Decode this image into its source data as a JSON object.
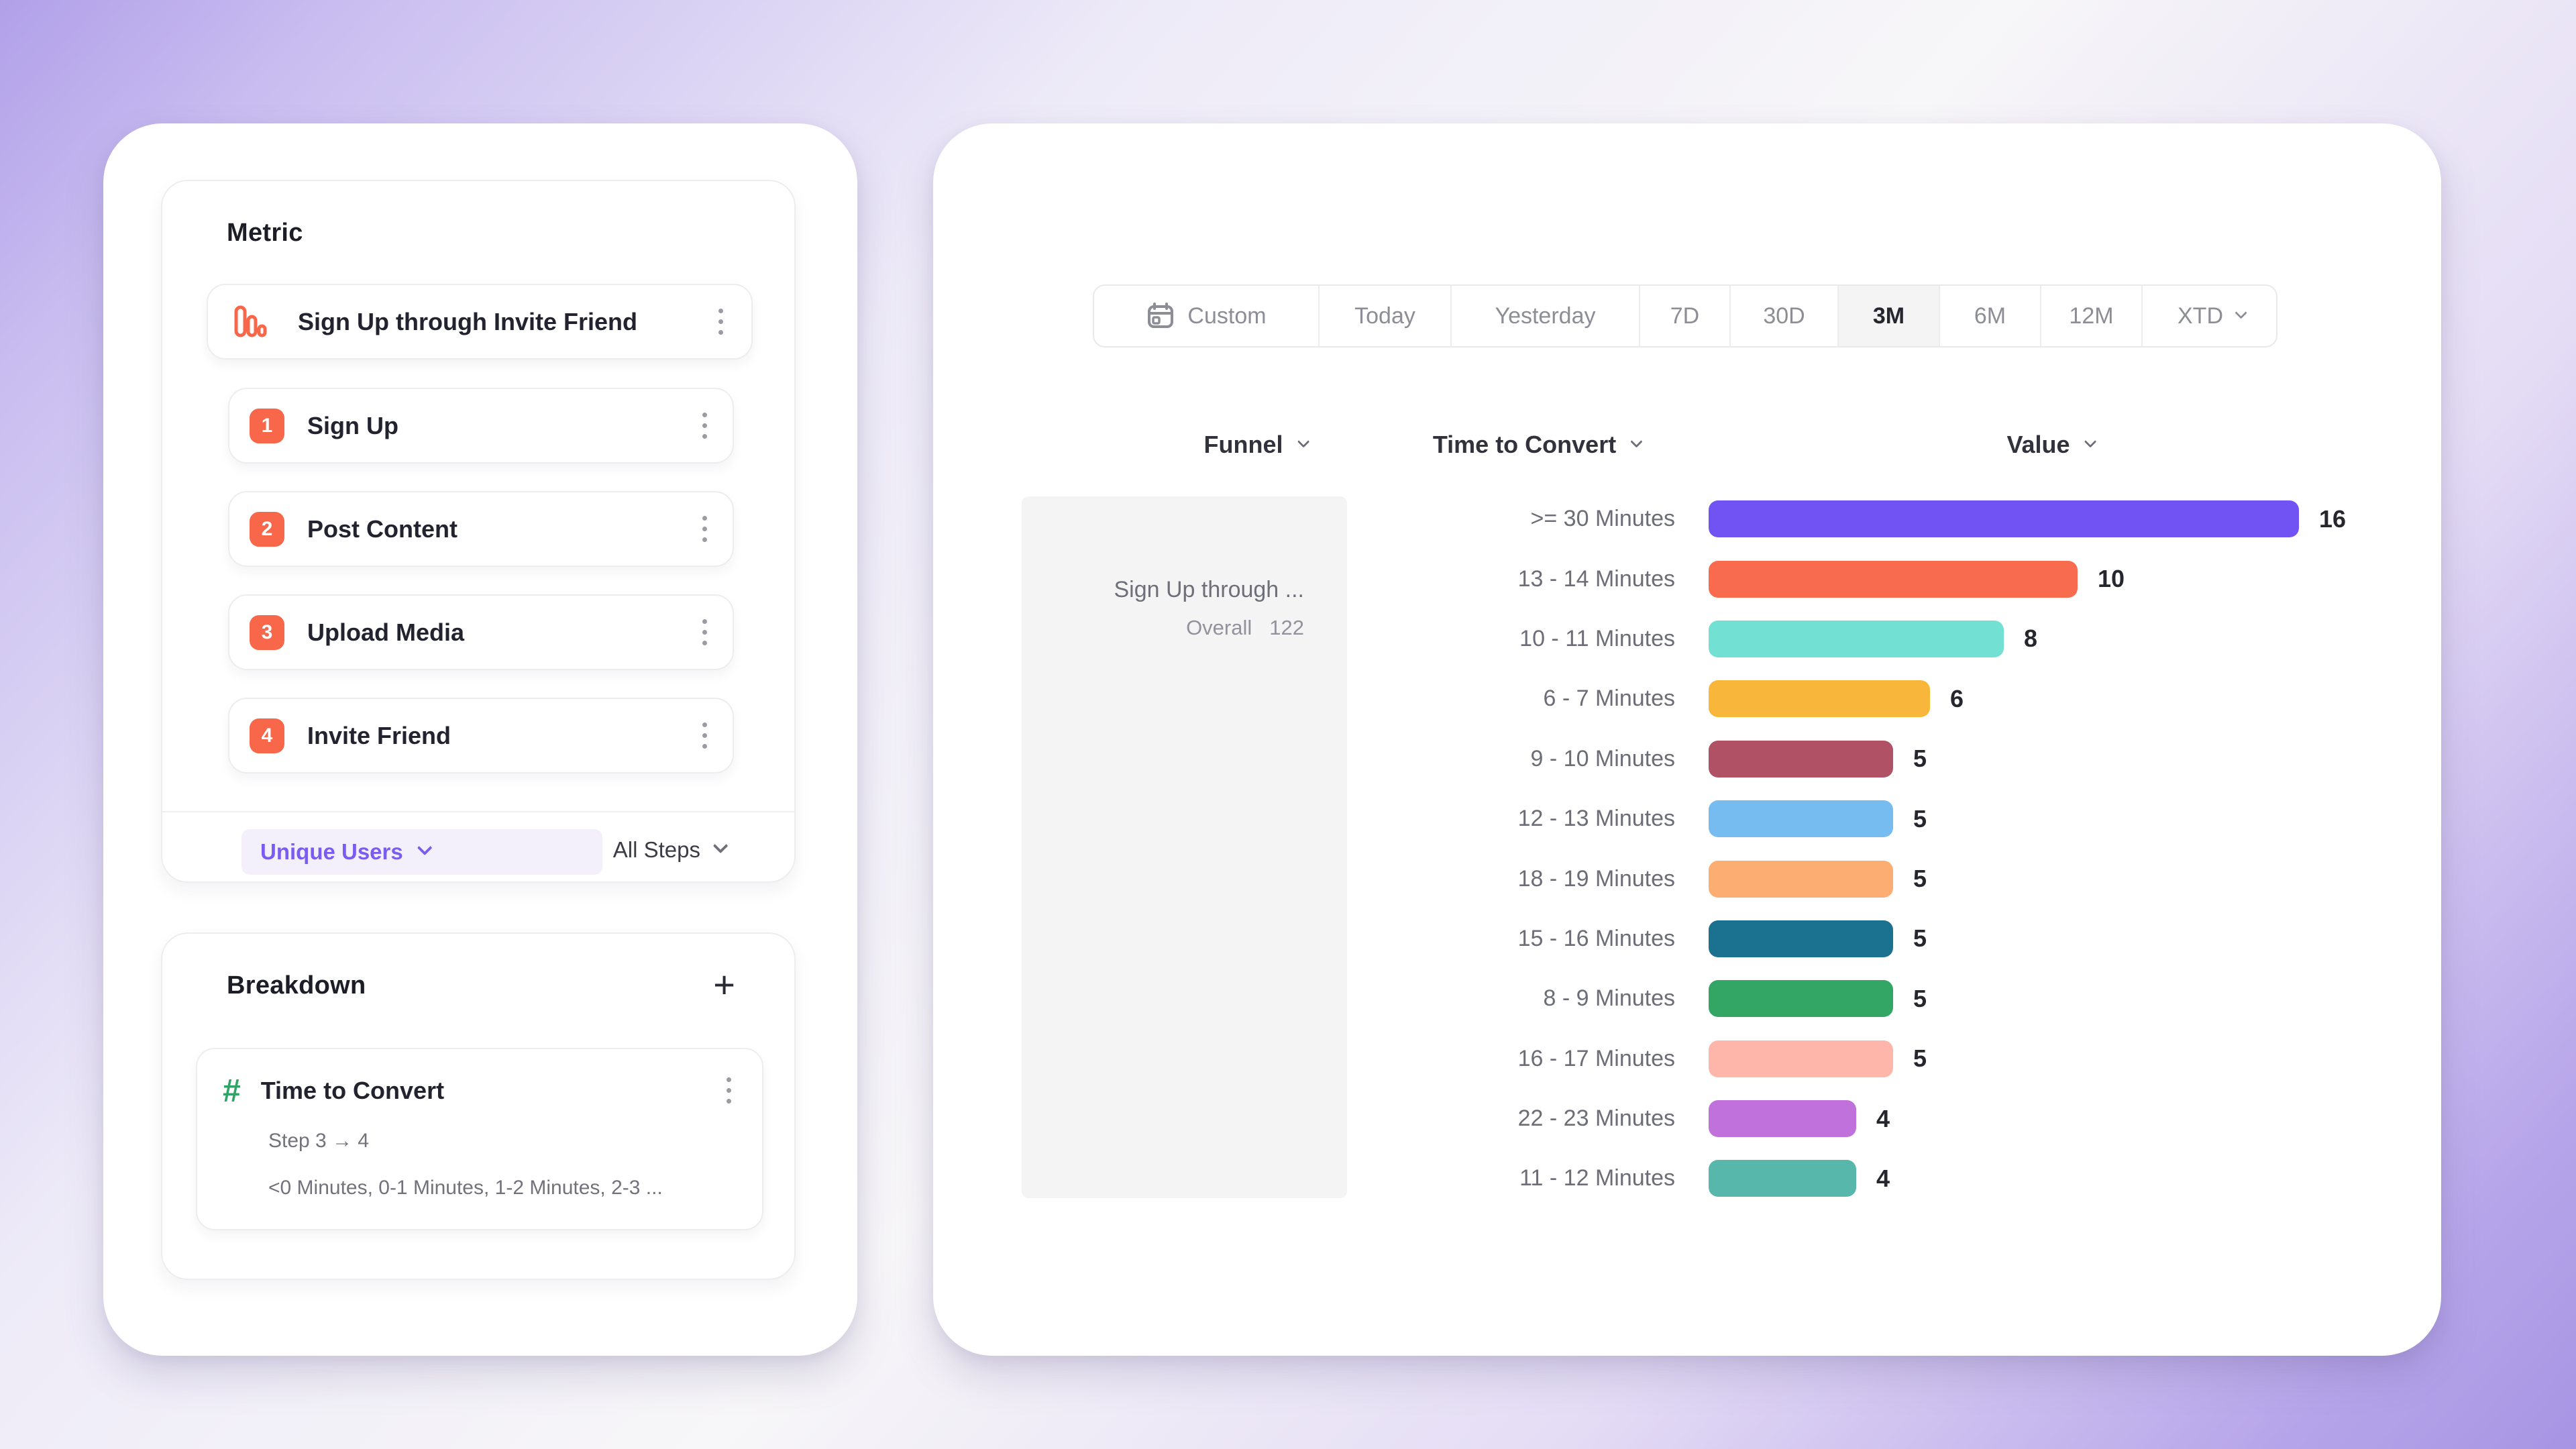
{
  "colors": {
    "accent_purple": "#7a5cf0",
    "step_orange": "#f9674a",
    "hash_green": "#2fa466",
    "selected_segment_bg": "#f4f4f5",
    "pattern_overlay": "#7a96c4"
  },
  "icons": {
    "metric_kind": "bar-chart-icon",
    "date_custom": "calendar-icon",
    "breakdown_kind": "hash-icon",
    "add": "plus-icon",
    "item_menu": "kebab-menu-icon",
    "dropdown": "chevron-down-icon"
  },
  "left_panel": {
    "metric": {
      "title": "Metric",
      "funnel_name": "Sign Up through Invite Friend",
      "steps": [
        {
          "num": "1",
          "label": "Sign Up"
        },
        {
          "num": "2",
          "label": "Post Content"
        },
        {
          "num": "3",
          "label": "Upload Media"
        },
        {
          "num": "4",
          "label": "Invite Friend"
        }
      ],
      "measurement_label": "Unique Users",
      "steps_filter_label": "All Steps"
    },
    "breakdown": {
      "title": "Breakdown",
      "add_label": "+",
      "property_name": "Time to Convert",
      "step_range": "Step 3 → 4",
      "buckets_preview": "<0 Minutes, 0-1 Minutes, 1-2 Minutes, 2-3 ..."
    }
  },
  "toolbar": {
    "ranges": [
      {
        "label": "Custom",
        "icon": "calendar-icon"
      },
      {
        "label": "Today"
      },
      {
        "label": "Yesterday"
      },
      {
        "label": "7D"
      },
      {
        "label": "30D"
      },
      {
        "label": "3M"
      },
      {
        "label": "6M"
      },
      {
        "label": "12M"
      },
      {
        "label": "XTD",
        "chevron": true
      }
    ],
    "selected": "3M"
  },
  "table": {
    "headers": {
      "funnel": "Funnel",
      "time_to_convert": "Time to Convert",
      "value": "Value"
    },
    "funnel_cell": {
      "name": "Sign Up through ...",
      "overall_label": "Overall",
      "overall_value": "122"
    }
  },
  "chart_data": {
    "type": "bar",
    "orientation": "horizontal",
    "title": "",
    "xlabel": "Value",
    "ylabel": "Time to Convert",
    "xlim": [
      0,
      16
    ],
    "grid": false,
    "value_labels": "end-of-bar",
    "categories": [
      ">= 30 Minutes",
      "13 - 14 Minutes",
      "10 - 11 Minutes",
      "6 - 7 Minutes",
      "9 - 10 Minutes",
      "12 - 13 Minutes",
      "18 - 19 Minutes",
      "15 - 16 Minutes",
      "8 - 9 Minutes",
      "16 - 17 Minutes",
      "22 - 23 Minutes",
      "11 - 12 Minutes"
    ],
    "values": [
      16,
      10,
      8,
      6,
      5,
      5,
      5,
      5,
      5,
      5,
      4,
      4
    ],
    "colors": [
      "#7152f3",
      "#f96b4f",
      "#72e1d3",
      "#f8b63b",
      "#b05166",
      "#76bcf1",
      "#fcad72",
      "#1b7190",
      "#33a565",
      "#fdb6a9",
      "#c171dc",
      "#58b7ab"
    ],
    "patterned_index": 2,
    "overall_total": 122
  }
}
